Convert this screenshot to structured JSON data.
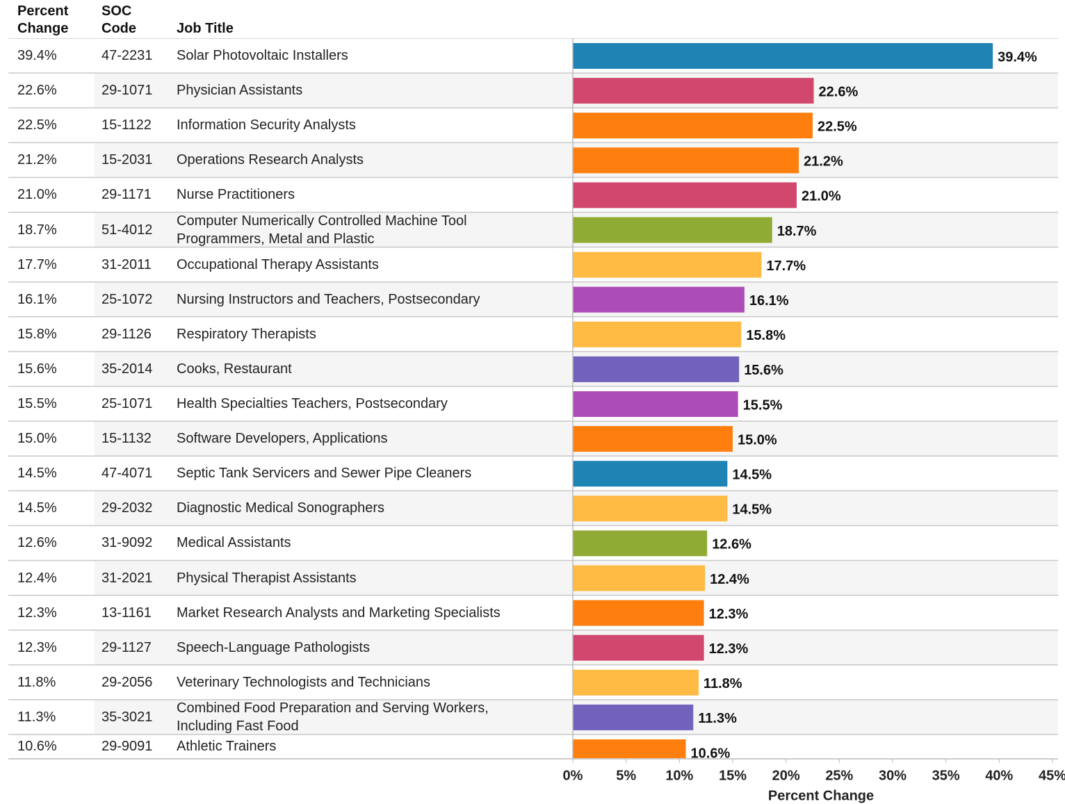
{
  "chart_data": {
    "type": "bar",
    "orientation": "horizontal",
    "column_headers": [
      "Percent Change",
      "SOC Code",
      "Job Title"
    ],
    "categories": [
      "Solar Photovoltaic Installers",
      "Physician Assistants",
      "Information Security Analysts",
      "Operations Research Analysts",
      "Nurse Practitioners",
      "Computer Numerically Controlled Machine Tool Programmers, Metal and Plastic",
      "Occupational Therapy Assistants",
      "Nursing Instructors and Teachers, Postsecondary",
      "Respiratory Therapists",
      "Cooks, Restaurant",
      "Health Specialties Teachers, Postsecondary",
      "Software Developers, Applications",
      "Septic Tank Servicers and Sewer Pipe Cleaners",
      "Diagnostic Medical Sonographers",
      "Medical Assistants",
      "Physical Therapist Assistants",
      "Market Research Analysts and Marketing Specialists",
      "Speech-Language Pathologists",
      "Veterinary Technologists and Technicians",
      "Combined Food Preparation and Serving Workers, Including Fast Food",
      "Athletic Trainers"
    ],
    "soc_codes": [
      "47-2231",
      "29-1071",
      "15-1122",
      "15-2031",
      "29-1171",
      "51-4012",
      "31-2011",
      "25-1072",
      "29-1126",
      "35-2014",
      "25-1071",
      "15-1132",
      "47-4071",
      "29-2032",
      "31-9092",
      "31-2021",
      "13-1161",
      "29-1127",
      "29-2056",
      "35-3021",
      "29-9091"
    ],
    "values": [
      39.4,
      22.6,
      22.5,
      21.2,
      21.0,
      18.7,
      17.7,
      16.1,
      15.8,
      15.6,
      15.5,
      15.0,
      14.5,
      14.5,
      12.6,
      12.4,
      12.3,
      12.3,
      11.8,
      11.3,
      10.6
    ],
    "value_labels": [
      "39.4%",
      "22.6%",
      "22.5%",
      "21.2%",
      "21.0%",
      "18.7%",
      "17.7%",
      "16.1%",
      "15.8%",
      "15.6%",
      "15.5%",
      "15.0%",
      "14.5%",
      "14.5%",
      "12.6%",
      "12.4%",
      "12.3%",
      "12.3%",
      "11.8%",
      "11.3%",
      "10.6%"
    ],
    "colors": [
      "#1f83b4",
      "#d1476e",
      "#ff7f0e",
      "#ff7f0e",
      "#d1476e",
      "#8fab33",
      "#ffbb44",
      "#ac4cb6",
      "#ffbb44",
      "#7362bb",
      "#ac4cb6",
      "#ff7f0e",
      "#1f83b4",
      "#ffbb44",
      "#8fab33",
      "#ffbb44",
      "#ff7f0e",
      "#d1476e",
      "#ffbb44",
      "#7362bb",
      "#ff7f0e"
    ],
    "xlabel": "Percent Change",
    "xlim": [
      0,
      45
    ],
    "xticks": [
      {
        "value": 0,
        "label": "0%"
      },
      {
        "value": 5,
        "label": "5%"
      },
      {
        "value": 10,
        "label": "10%"
      },
      {
        "value": 15,
        "label": "15%"
      },
      {
        "value": 20,
        "label": "20%"
      },
      {
        "value": 25,
        "label": "25%"
      },
      {
        "value": 30,
        "label": "30%"
      },
      {
        "value": 35,
        "label": "35%"
      },
      {
        "value": 40,
        "label": "40%"
      },
      {
        "value": 45,
        "label": "45%"
      }
    ]
  }
}
